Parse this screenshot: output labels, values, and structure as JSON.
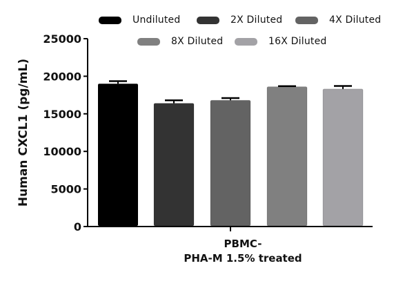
{
  "chart_data": {
    "type": "bar",
    "title": "",
    "xlabel": "PBMC-\nPHA-M 1.5% treated",
    "xlabel_lines": [
      "PBMC-",
      "PHA-M 1.5% treated"
    ],
    "ylabel": "Human CXCL1 (pg/mL)",
    "ylim": [
      0,
      25000
    ],
    "yticks": [
      0,
      5000,
      10000,
      15000,
      20000,
      25000
    ],
    "ytick_labels": [
      "0",
      "5000",
      "10000",
      "15000",
      "20000",
      "25000"
    ],
    "grid": false,
    "legend_position": "top",
    "categories": [
      "PBMC- PHA-M 1.5% treated"
    ],
    "series": [
      {
        "name": "Undiluted",
        "values": [
          19000
        ],
        "error": [
          350
        ],
        "color": "#000000"
      },
      {
        "name": "2X Diluted",
        "values": [
          16400
        ],
        "error": [
          400
        ],
        "color": "#333333"
      },
      {
        "name": "4X Diluted",
        "values": [
          16800
        ],
        "error": [
          300
        ],
        "color": "#636363"
      },
      {
        "name": "8X Diluted",
        "values": [
          18600
        ],
        "error": [
          80
        ],
        "color": "#808080"
      },
      {
        "name": "16X Diluted",
        "values": [
          18300
        ],
        "error": [
          400
        ],
        "color": "#a3a2a6"
      }
    ]
  },
  "legend": {
    "items": [
      {
        "label": "Undiluted",
        "color": "#000000"
      },
      {
        "label": "2X Diluted",
        "color": "#333333"
      },
      {
        "label": "4X Diluted",
        "color": "#636363"
      },
      {
        "label": "8X Diluted",
        "color": "#808080"
      },
      {
        "label": "16X Diluted",
        "color": "#a3a2a6"
      }
    ]
  },
  "axes": {
    "y_title": "Human CXCL1 (pg/mL)",
    "x_title_line1": "PBMC-",
    "x_title_line2": "PHA-M 1.5% treated"
  }
}
